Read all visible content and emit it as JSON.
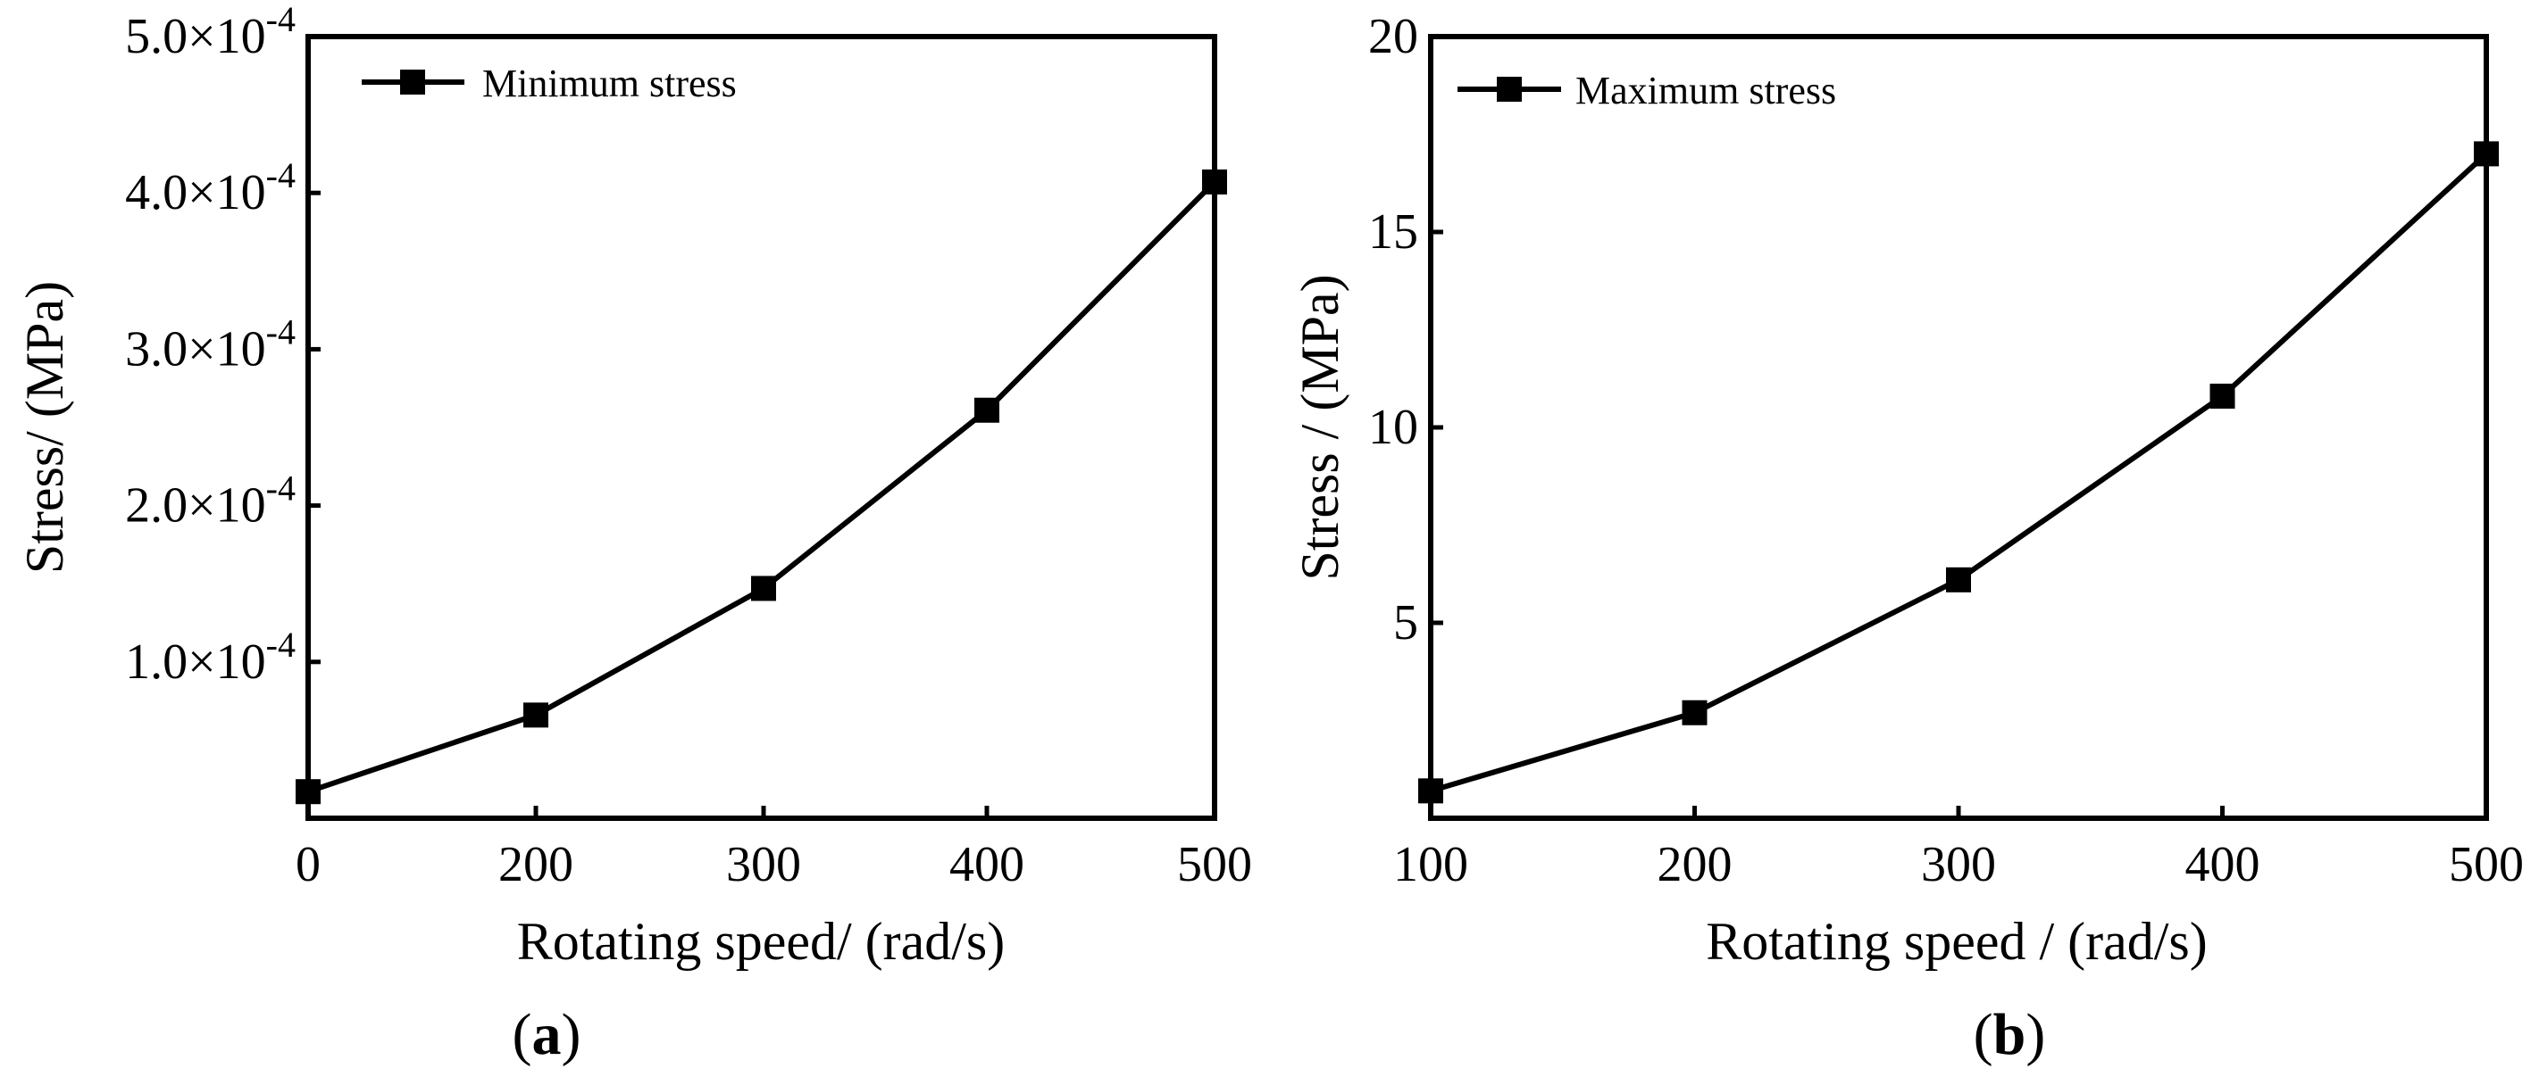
{
  "chart_data": [
    {
      "type": "line",
      "panel_label": "a",
      "x": [
        0,
        200,
        300,
        400,
        500
      ],
      "x_ticks": [
        0,
        200,
        300,
        400,
        500
      ],
      "x_tick_labels": [
        "0",
        "200",
        "300",
        "400",
        "500"
      ],
      "y_ticks": [
        0.0001,
        0.0002,
        0.0003,
        0.0004,
        0.0005
      ],
      "y_tick_mantissas": [
        "1.0×10",
        "2.0×10",
        "3.0×10",
        "4.0×10",
        "5.0×10"
      ],
      "y_tick_exponent": "-4",
      "ylim": [
        0.0,
        0.0005
      ],
      "xlabel": "Rotating speed/ (rad/s)",
      "ylabel": "Stress/ (MPa)",
      "series": [
        {
          "name": "Minimum stress",
          "values": [
            1.7e-05,
            6.6e-05,
            0.000147,
            0.000261,
            0.000407
          ]
        }
      ],
      "legend_position": "top-left"
    },
    {
      "type": "line",
      "panel_label": "b",
      "x": [
        100,
        200,
        300,
        400,
        500
      ],
      "x_ticks": [
        100,
        200,
        300,
        400,
        500
      ],
      "x_tick_labels": [
        "100",
        "200",
        "300",
        "400",
        "500"
      ],
      "y_ticks": [
        5,
        10,
        15,
        20
      ],
      "y_tick_labels": [
        "5",
        "10",
        "15",
        "20"
      ],
      "ylim": [
        0,
        20
      ],
      "xlabel": "Rotating speed / (rad/s)",
      "ylabel": "Stress / (MPa)",
      "series": [
        {
          "name": "Maximum stress",
          "values": [
            0.7,
            2.7,
            6.1,
            10.8,
            17.0
          ]
        }
      ],
      "legend_position": "top-left"
    }
  ]
}
